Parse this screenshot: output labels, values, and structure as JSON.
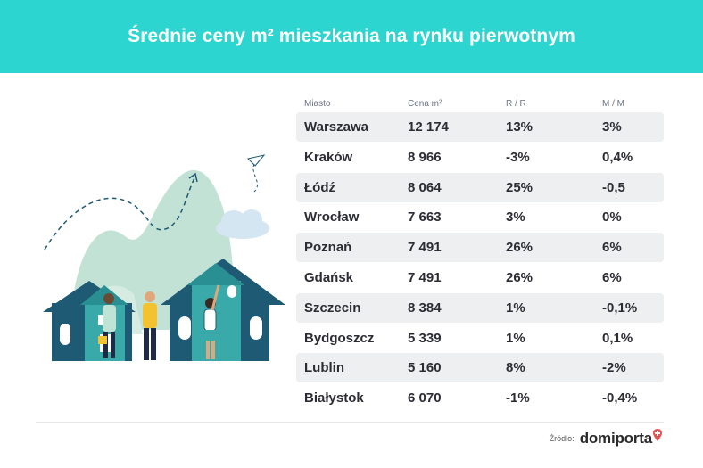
{
  "title": "Średnie ceny m² mieszkania na rynku pierwotnym",
  "table": {
    "headers": [
      "Miasto",
      "Cena m²",
      "R / R",
      "M / M"
    ],
    "rows": [
      {
        "city": "Warszawa",
        "price": "12 174",
        "yoy": "13%",
        "mom": "3%"
      },
      {
        "city": "Kraków",
        "price": "8 966",
        "yoy": "-3%",
        "mom": "0,4%"
      },
      {
        "city": "Łódź",
        "price": "8 064",
        "yoy": "25%",
        "mom": "-0,5"
      },
      {
        "city": "Wrocław",
        "price": "7 663",
        "yoy": "3%",
        "mom": "0%"
      },
      {
        "city": "Poznań",
        "price": "7 491",
        "yoy": "26%",
        "mom": "6%"
      },
      {
        "city": "Gdańsk",
        "price": "7 491",
        "yoy": "26%",
        "mom": "6%"
      },
      {
        "city": "Szczecin",
        "price": "8 384",
        "yoy": "1%",
        "mom": "-0,1%"
      },
      {
        "city": "Bydgoszcz",
        "price": "5 339",
        "yoy": "1%",
        "mom": "0,1%"
      },
      {
        "city": "Lublin",
        "price": "5 160",
        "yoy": "8%",
        "mom": "-2%"
      },
      {
        "city": "Białystok",
        "price": "6 070",
        "yoy": "-1%",
        "mom": "-0,4%"
      }
    ]
  },
  "footer": {
    "source_label": "Źródło:",
    "brand": "domiporta"
  },
  "colors": {
    "header": "#2dd5d0",
    "row_shade": "#eeeff1",
    "house_dark": "#1e5a73",
    "house_teal": "#3aa9a9",
    "hill": "#b9dccf",
    "brand_accent": "#e8504f"
  }
}
